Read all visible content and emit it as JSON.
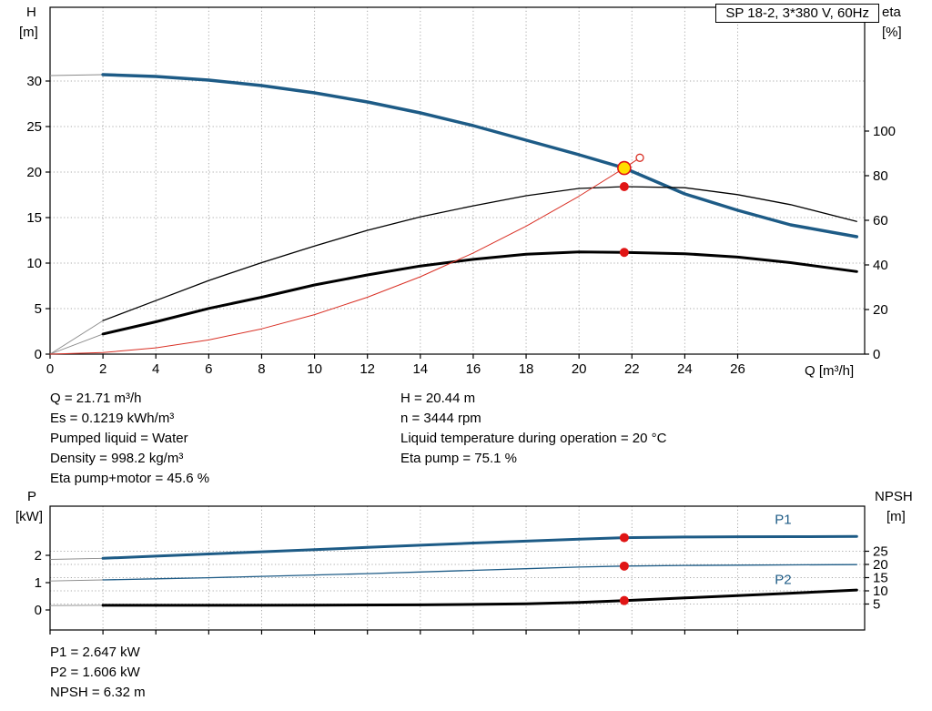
{
  "title_box": {
    "label": "SP 18-2, 3*380 V, 60Hz"
  },
  "labels": {
    "h_symbol": "H",
    "h_unit": "[m]",
    "eta_symbol": "eta",
    "eta_unit": "[%]",
    "q_label": "Q [m³/h]",
    "p_symbol": "P",
    "p_unit": "[kW]",
    "npsh_symbol": "NPSH",
    "npsh_unit": "[m]"
  },
  "info_block": {
    "left": [
      "Q = 21.71 m³/h",
      "Es = 0.1219 kWh/m³",
      "Pumped liquid = Water",
      "Density = 998.2 kg/m³",
      "Eta pump+motor = 45.6 %"
    ],
    "right": [
      "H = 20.44 m",
      "n = 3444 rpm",
      "Liquid temperature during operation = 20 °C",
      "Eta pump = 75.1 %"
    ]
  },
  "bottom_info": [
    "P1 = 2.647 kW",
    "P2 = 1.606 kW",
    "NPSH = 6.32 m"
  ],
  "colors": {
    "curve_blue": "#1d5b86",
    "curve_black": "#000000",
    "curve_red": "#d93025",
    "marker_red": "#e01515",
    "marker_yellow": "#ffdd00",
    "lead_gray": "#8a8a8a",
    "grid": "#a8a8a8"
  },
  "chart_data": [
    {
      "name": "head-capacity",
      "type": "line",
      "title": "SP 18-2, 3*380 V, 60Hz",
      "x_axis": {
        "label": "Q [m³/h]",
        "min": 0,
        "max": 30.8,
        "ticks": [
          0,
          2,
          4,
          6,
          8,
          10,
          12,
          14,
          16,
          18,
          20,
          22,
          24,
          26
        ],
        "show_labels": true
      },
      "y_left": {
        "label": "H [m]",
        "min": 0,
        "max": 38.1,
        "ticks": [
          0,
          5,
          10,
          15,
          20,
          25,
          30
        ]
      },
      "y_right": {
        "label": "eta [%]",
        "min": 0,
        "max": 155.5,
        "ticks": [
          0,
          20,
          40,
          60,
          80,
          100
        ]
      },
      "grid_y": "y_left",
      "series": [
        {
          "name": "head-curve",
          "axis": "y_left",
          "color": "curve_blue",
          "width": 3.5,
          "lead": [
            [
              0,
              30.6
            ],
            [
              2,
              30.7
            ]
          ],
          "points": [
            [
              2,
              30.7
            ],
            [
              4,
              30.5
            ],
            [
              6,
              30.1
            ],
            [
              8,
              29.5
            ],
            [
              10,
              28.7
            ],
            [
              12,
              27.7
            ],
            [
              14,
              26.5
            ],
            [
              16,
              25.1
            ],
            [
              18,
              23.5
            ],
            [
              20,
              21.9
            ],
            [
              21.71,
              20.44
            ],
            [
              24,
              17.6
            ],
            [
              26,
              15.8
            ],
            [
              28,
              14.2
            ],
            [
              30.5,
              12.9
            ]
          ]
        },
        {
          "name": "eta-pump-curve",
          "axis": "y_right",
          "color": "curve_black",
          "width": 1.3,
          "lead": [
            [
              0,
              0
            ],
            [
              2,
              15
            ]
          ],
          "points": [
            [
              2,
              15
            ],
            [
              4,
              24
            ],
            [
              6,
              33
            ],
            [
              8,
              41
            ],
            [
              10,
              48.5
            ],
            [
              12,
              55.5
            ],
            [
              14,
              61.5
            ],
            [
              16,
              66.5
            ],
            [
              18,
              71
            ],
            [
              20,
              74.3
            ],
            [
              21.71,
              75.1
            ],
            [
              24,
              74.6
            ],
            [
              26,
              71.5
            ],
            [
              28,
              67
            ],
            [
              30.5,
              59.5
            ]
          ]
        },
        {
          "name": "eta-pump-motor-curve",
          "axis": "y_right",
          "color": "curve_black",
          "width": 3,
          "lead": [
            [
              0,
              0
            ],
            [
              2,
              9
            ]
          ],
          "points": [
            [
              2,
              9
            ],
            [
              4,
              14.5
            ],
            [
              6,
              20.5
            ],
            [
              8,
              25.5
            ],
            [
              10,
              31
            ],
            [
              12,
              35.5
            ],
            [
              14,
              39.5
            ],
            [
              16,
              42.5
            ],
            [
              18,
              44.8
            ],
            [
              20,
              45.8
            ],
            [
              21.71,
              45.6
            ],
            [
              24,
              45
            ],
            [
              26,
              43.5
            ],
            [
              28,
              41
            ],
            [
              30.5,
              37
            ]
          ]
        },
        {
          "name": "system-curve",
          "axis": "y_left",
          "color": "curve_red",
          "width": 1,
          "points": [
            [
              0,
              0
            ],
            [
              2,
              0.17
            ],
            [
              4,
              0.69
            ],
            [
              6,
              1.56
            ],
            [
              8,
              2.78
            ],
            [
              10,
              4.34
            ],
            [
              12,
              6.25
            ],
            [
              14,
              8.5
            ],
            [
              16,
              11.11
            ],
            [
              18,
              14.06
            ],
            [
              20,
              17.35
            ],
            [
              21.71,
              20.44
            ],
            [
              22.3,
              21.57
            ]
          ],
          "end_circle": [
            22.3,
            21.57
          ]
        }
      ],
      "markers": [
        {
          "name": "duty-point-marker",
          "axis": "y_left",
          "q": 21.71,
          "v": 20.44,
          "r": 7,
          "fill": "marker_yellow",
          "stroke": "marker_red"
        },
        {
          "name": "eta-pump-marker",
          "axis": "y_right",
          "q": 21.71,
          "v": 75.1,
          "r": 5,
          "fill": "marker_red"
        },
        {
          "name": "eta-pump-motor-marker",
          "axis": "y_right",
          "q": 21.71,
          "v": 45.6,
          "r": 5,
          "fill": "marker_red"
        }
      ]
    },
    {
      "name": "power-npsh",
      "type": "line",
      "x_axis": {
        "label": "Q [m³/h]",
        "min": 0,
        "max": 30.8,
        "ticks": [
          0,
          2,
          4,
          6,
          8,
          10,
          12,
          14,
          16,
          18,
          20,
          22,
          24,
          26
        ],
        "show_labels": false
      },
      "y_left": {
        "label": "P [kW]",
        "min": -0.733,
        "max": 3.8,
        "ticks": [
          0,
          1,
          2
        ]
      },
      "y_right": {
        "label": "NPSH [m]",
        "min": -4.83,
        "max": 42.07,
        "ticks": [
          5,
          10,
          15,
          20,
          25
        ]
      },
      "grid_y": "y_right",
      "series": [
        {
          "name": "p1-curve",
          "axis": "y_left",
          "color": "curve_blue",
          "width": 3,
          "lead": [
            [
              0,
              1.85
            ],
            [
              2,
              1.89
            ]
          ],
          "points": [
            [
              2,
              1.89
            ],
            [
              4,
              1.97
            ],
            [
              6,
              2.05
            ],
            [
              8,
              2.13
            ],
            [
              10,
              2.21
            ],
            [
              12,
              2.29
            ],
            [
              14,
              2.37
            ],
            [
              16,
              2.45
            ],
            [
              18,
              2.52
            ],
            [
              20,
              2.59
            ],
            [
              21.71,
              2.647
            ],
            [
              24,
              2.67
            ],
            [
              26,
              2.68
            ],
            [
              28,
              2.685
            ],
            [
              30.5,
              2.69
            ]
          ],
          "label": {
            "text": "P1",
            "x": 27.4,
            "y": 3.15
          }
        },
        {
          "name": "p2-curve",
          "axis": "y_left",
          "color": "curve_blue",
          "width": 1.3,
          "lead": [
            [
              0,
              1.06
            ],
            [
              2,
              1.1
            ]
          ],
          "points": [
            [
              2,
              1.1
            ],
            [
              4,
              1.14
            ],
            [
              6,
              1.18
            ],
            [
              8,
              1.23
            ],
            [
              10,
              1.28
            ],
            [
              12,
              1.33
            ],
            [
              14,
              1.39
            ],
            [
              16,
              1.45
            ],
            [
              18,
              1.51
            ],
            [
              20,
              1.57
            ],
            [
              21.71,
              1.606
            ],
            [
              24,
              1.63
            ],
            [
              26,
              1.64
            ],
            [
              28,
              1.65
            ],
            [
              30.5,
              1.66
            ]
          ],
          "label": {
            "text": "P2",
            "x": 27.4,
            "y": 0.95
          }
        },
        {
          "name": "npsh-curve",
          "axis": "y_right",
          "color": "curve_black",
          "width": 3,
          "lead": [
            [
              0,
              4.4
            ],
            [
              2,
              4.5
            ]
          ],
          "points": [
            [
              2,
              4.5
            ],
            [
              6,
              4.5
            ],
            [
              10,
              4.6
            ],
            [
              14,
              4.7
            ],
            [
              16,
              4.85
            ],
            [
              18,
              5.1
            ],
            [
              20,
              5.6
            ],
            [
              21.71,
              6.32
            ],
            [
              24,
              7.3
            ],
            [
              26,
              8.2
            ],
            [
              28,
              9.1
            ],
            [
              30.5,
              10.3
            ]
          ]
        }
      ],
      "markers": [
        {
          "name": "p1-marker",
          "axis": "y_left",
          "q": 21.71,
          "v": 2.647,
          "r": 5,
          "fill": "marker_red"
        },
        {
          "name": "p2-marker",
          "axis": "y_left",
          "q": 21.71,
          "v": 1.606,
          "r": 5,
          "fill": "marker_red"
        },
        {
          "name": "npsh-marker",
          "axis": "y_right",
          "q": 21.71,
          "v": 6.32,
          "r": 5,
          "fill": "marker_red"
        }
      ]
    }
  ]
}
